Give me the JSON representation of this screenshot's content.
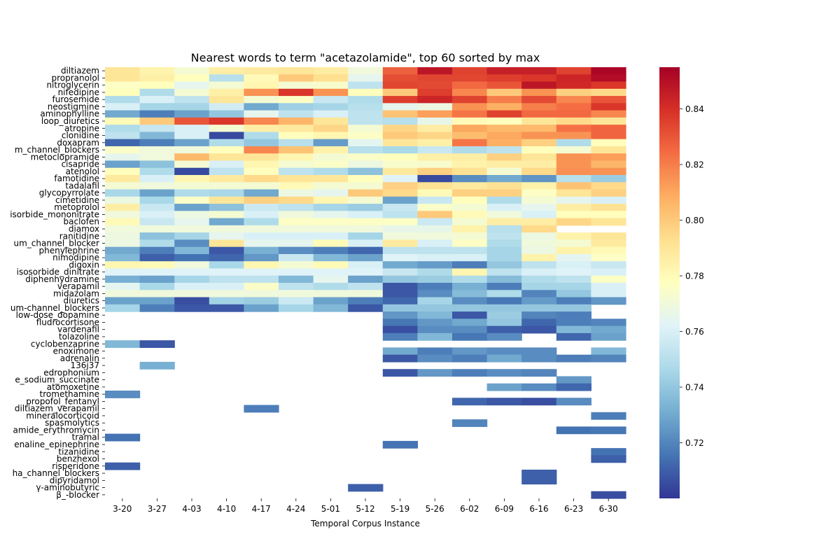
{
  "chart_data": {
    "type": "heatmap",
    "title": "Nearest words to term \"acetazolamide\", top 60 sorted by max",
    "xlabel": "Temporal Corpus Instance",
    "ylabel": "",
    "colormap": "RdYlBu_r",
    "clim": [
      0.7,
      0.855
    ],
    "colorbar_ticks": [
      "0.72",
      "0.74",
      "0.76",
      "0.78",
      "0.80",
      "0.82",
      "0.84"
    ],
    "colorbar_tick_values": [
      0.72,
      0.74,
      0.76,
      0.78,
      0.8,
      0.82,
      0.84
    ],
    "x": [
      "3-20",
      "3-27",
      "4-03",
      "4-10",
      "4-17",
      "4-24",
      "5-01",
      "5-12",
      "5-19",
      "5-26",
      "6-02",
      "6-09",
      "6-16",
      "6-23",
      "6-30"
    ],
    "y": [
      "diltiazem",
      "propranolol",
      "nitroglycerin",
      "nifedipine",
      "furosemide",
      "neostigmine",
      "aminophylline",
      "loop_diuretics",
      "atropine",
      "clonidine",
      "doxapram",
      "m_channel_blockers",
      "metoclopramide",
      "cisapride",
      "atenolol",
      "famotidine",
      "tadalafil",
      "glycopyrrolate",
      "cimetidine",
      "metoprolol",
      "isorbide_mononitrate",
      "baclofen",
      "diamox",
      "ranitidine",
      "um_channel_blocker",
      "phenylephrine",
      "nimodipine",
      "digoxin",
      "isosorbide_dinitrate",
      "diphenhydramine",
      "verapamil",
      "midazolam",
      "diuretics",
      "um-channel_blockers",
      "low-dose_dopamine",
      "fludrocortisone",
      "vardenafil",
      "tolazoline",
      "cyclobenzaprine",
      "enoximone",
      "adrenalin",
      "136j37",
      "edrophonium",
      "e_sodium_succinate",
      "atomoxetine",
      "tromethamine",
      "propofol_fentanyl",
      "diltiazem_verapamil",
      "mineralocorticoid",
      "spasmolytics",
      "amide_erythromycin",
      "tramal",
      "enaline_epinephrine",
      "tizanidine",
      "benzhexol",
      "risperidone",
      "ha_channel_blockers",
      "dipyridamol",
      "γ-aminobutyric",
      "β_-blocker"
    ],
    "values": [
      [
        0.79,
        0.783,
        0.772,
        0.786,
        0.788,
        0.79,
        0.787,
        0.77,
        0.827,
        0.848,
        0.835,
        0.845,
        0.845,
        0.835,
        0.853
      ],
      [
        0.79,
        0.785,
        0.778,
        0.75,
        0.78,
        0.8,
        0.793,
        0.765,
        0.832,
        0.834,
        0.834,
        0.836,
        0.838,
        0.843,
        0.851
      ],
      [
        0.776,
        0.778,
        0.765,
        0.772,
        0.782,
        0.772,
        0.774,
        0.752,
        0.834,
        0.833,
        0.825,
        0.83,
        0.848,
        0.842,
        0.838
      ],
      [
        0.778,
        0.748,
        0.772,
        0.785,
        0.815,
        0.838,
        0.815,
        0.778,
        0.8,
        0.836,
        0.818,
        0.8,
        0.815,
        0.798,
        0.795
      ],
      [
        0.748,
        0.76,
        0.752,
        0.79,
        0.772,
        0.776,
        0.755,
        0.748,
        0.836,
        0.843,
        0.835,
        0.82,
        0.833,
        0.818,
        0.83
      ],
      [
        0.76,
        0.745,
        0.745,
        0.758,
        0.73,
        0.743,
        0.745,
        0.75,
        0.765,
        0.768,
        0.815,
        0.808,
        0.82,
        0.824,
        0.838
      ],
      [
        0.73,
        0.718,
        0.728,
        0.74,
        0.765,
        0.752,
        0.76,
        0.752,
        0.802,
        0.812,
        0.822,
        0.835,
        0.825,
        0.825,
        0.818
      ],
      [
        0.78,
        0.8,
        0.83,
        0.838,
        0.818,
        0.806,
        0.79,
        0.752,
        0.75,
        0.766,
        0.78,
        0.778,
        0.79,
        0.795,
        0.79
      ],
      [
        0.748,
        0.755,
        0.76,
        0.772,
        0.786,
        0.788,
        0.796,
        0.772,
        0.796,
        0.786,
        0.81,
        0.805,
        0.805,
        0.823,
        0.826
      ],
      [
        0.752,
        0.735,
        0.76,
        0.705,
        0.748,
        0.778,
        0.782,
        0.776,
        0.8,
        0.796,
        0.804,
        0.81,
        0.815,
        0.815,
        0.826
      ],
      [
        0.712,
        0.718,
        0.728,
        0.748,
        0.74,
        0.75,
        0.726,
        0.764,
        0.79,
        0.785,
        0.822,
        0.808,
        0.798,
        0.748,
        0.778
      ],
      [
        0.775,
        0.77,
        0.77,
        0.778,
        0.818,
        0.802,
        0.784,
        0.75,
        0.746,
        0.755,
        0.748,
        0.752,
        0.778,
        0.772,
        0.79
      ],
      [
        0.765,
        0.77,
        0.805,
        0.79,
        0.79,
        0.782,
        0.772,
        0.775,
        0.778,
        0.785,
        0.786,
        0.798,
        0.79,
        0.815,
        0.812
      ],
      [
        0.728,
        0.738,
        0.772,
        0.76,
        0.782,
        0.772,
        0.775,
        0.768,
        0.774,
        0.774,
        0.784,
        0.786,
        0.786,
        0.815,
        0.806
      ],
      [
        0.778,
        0.748,
        0.705,
        0.752,
        0.778,
        0.752,
        0.748,
        0.738,
        0.788,
        0.798,
        0.792,
        0.772,
        0.795,
        0.816,
        0.815
      ],
      [
        0.788,
        0.76,
        0.782,
        0.788,
        0.795,
        0.79,
        0.79,
        0.778,
        0.762,
        0.705,
        0.722,
        0.73,
        0.724,
        0.75,
        0.742
      ],
      [
        0.772,
        0.77,
        0.772,
        0.772,
        0.772,
        0.78,
        0.772,
        0.772,
        0.798,
        0.792,
        0.788,
        0.792,
        0.784,
        0.802,
        0.795
      ],
      [
        0.746,
        0.728,
        0.748,
        0.746,
        0.73,
        0.768,
        0.765,
        0.8,
        0.795,
        0.78,
        0.798,
        0.798,
        0.776,
        0.79,
        0.798
      ],
      [
        0.768,
        0.746,
        0.775,
        0.79,
        0.798,
        0.795,
        0.782,
        0.772,
        0.728,
        0.755,
        0.778,
        0.748,
        0.772,
        0.765,
        0.76
      ],
      [
        0.786,
        0.755,
        0.728,
        0.738,
        0.756,
        0.752,
        0.745,
        0.742,
        0.755,
        0.775,
        0.772,
        0.76,
        0.765,
        0.786,
        0.792
      ],
      [
        0.77,
        0.76,
        0.768,
        0.772,
        0.76,
        0.77,
        0.765,
        0.76,
        0.752,
        0.8,
        0.78,
        0.77,
        0.76,
        0.778,
        0.778
      ],
      [
        0.78,
        0.755,
        0.765,
        0.73,
        0.748,
        0.776,
        0.776,
        0.776,
        0.776,
        0.756,
        0.772,
        0.786,
        0.786,
        0.796,
        0.79
      ],
      [
        0.77,
        0.77,
        0.77,
        0.77,
        0.77,
        0.77,
        0.77,
        0.77,
        0.766,
        0.766,
        0.784,
        0.75,
        0.795,
        null,
        null
      ],
      [
        0.768,
        0.738,
        0.745,
        0.765,
        0.76,
        0.76,
        0.76,
        0.745,
        0.77,
        0.77,
        0.772,
        0.752,
        0.768,
        0.784,
        0.79
      ],
      [
        0.768,
        0.748,
        0.722,
        0.79,
        0.765,
        0.765,
        0.78,
        0.76,
        0.788,
        0.76,
        0.776,
        0.748,
        0.77,
        0.772,
        0.788
      ],
      [
        0.73,
        0.718,
        0.735,
        0.708,
        0.732,
        0.722,
        0.718,
        0.712,
        0.752,
        0.752,
        0.752,
        0.745,
        0.768,
        0.784,
        0.78
      ],
      [
        0.735,
        0.71,
        0.715,
        0.712,
        0.725,
        0.755,
        0.735,
        0.728,
        0.762,
        0.76,
        0.76,
        0.745,
        0.784,
        0.764,
        0.776
      ],
      [
        0.782,
        0.78,
        0.77,
        0.746,
        0.782,
        0.772,
        0.78,
        0.76,
        0.73,
        0.726,
        0.718,
        0.74,
        0.752,
        0.76,
        0.755
      ],
      [
        0.762,
        0.762,
        0.762,
        0.762,
        0.762,
        0.762,
        0.762,
        0.762,
        0.755,
        0.748,
        0.782,
        0.752,
        0.76,
        0.762,
        0.76
      ],
      [
        0.732,
        0.728,
        0.745,
        0.752,
        0.752,
        0.735,
        0.765,
        0.728,
        0.74,
        0.742,
        0.748,
        0.736,
        0.748,
        0.752,
        0.776
      ],
      [
        0.764,
        0.746,
        0.76,
        0.76,
        0.775,
        0.752,
        0.748,
        0.752,
        0.708,
        0.718,
        0.732,
        0.718,
        0.745,
        0.745,
        0.76
      ],
      [
        0.77,
        0.77,
        0.77,
        0.77,
        0.77,
        0.77,
        0.77,
        0.77,
        0.708,
        0.722,
        0.736,
        0.748,
        0.72,
        0.74,
        0.76
      ],
      [
        0.728,
        0.728,
        0.706,
        0.744,
        0.742,
        0.756,
        0.728,
        0.718,
        0.712,
        0.745,
        0.722,
        0.716,
        0.726,
        0.718,
        0.725
      ],
      [
        0.745,
        0.718,
        0.708,
        0.708,
        0.728,
        0.745,
        0.735,
        0.708,
        0.74,
        0.74,
        0.74,
        0.74,
        0.74,
        0.74,
        null
      ],
      [
        null,
        null,
        null,
        null,
        null,
        null,
        null,
        null,
        0.725,
        0.735,
        0.708,
        0.742,
        0.72,
        0.718,
        null
      ],
      [
        null,
        null,
        null,
        null,
        null,
        null,
        null,
        null,
        0.716,
        0.725,
        0.73,
        0.74,
        0.712,
        0.718,
        0.72
      ],
      [
        null,
        null,
        null,
        null,
        null,
        null,
        null,
        null,
        0.706,
        0.722,
        0.722,
        0.71,
        0.708,
        0.735,
        0.73
      ],
      [
        null,
        null,
        null,
        null,
        null,
        null,
        null,
        null,
        0.718,
        0.735,
        0.716,
        0.722,
        null,
        0.712,
        0.728
      ],
      [
        0.735,
        0.708,
        null,
        null,
        null,
        null,
        null,
        null,
        null,
        null,
        null,
        null,
        null,
        null,
        null
      ],
      [
        null,
        null,
        null,
        null,
        null,
        null,
        null,
        null,
        0.73,
        0.718,
        0.725,
        0.722,
        0.722,
        null,
        0.735
      ],
      [
        null,
        null,
        null,
        null,
        null,
        null,
        null,
        null,
        0.708,
        0.722,
        0.718,
        0.73,
        0.722,
        0.718,
        0.72
      ],
      [
        null,
        0.732,
        null,
        null,
        null,
        null,
        null,
        null,
        null,
        null,
        null,
        null,
        null,
        null,
        null
      ],
      [
        null,
        null,
        null,
        null,
        null,
        null,
        null,
        null,
        0.708,
        0.725,
        0.718,
        0.722,
        0.72,
        null,
        null
      ],
      [
        null,
        null,
        null,
        null,
        null,
        null,
        null,
        null,
        null,
        null,
        null,
        null,
        null,
        0.725,
        null
      ],
      [
        null,
        null,
        null,
        null,
        null,
        null,
        null,
        null,
        null,
        null,
        null,
        0.728,
        0.722,
        0.712,
        null
      ],
      [
        0.722,
        null,
        null,
        null,
        null,
        null,
        null,
        null,
        null,
        null,
        null,
        null,
        null,
        null,
        null
      ],
      [
        null,
        null,
        null,
        null,
        null,
        null,
        null,
        null,
        null,
        null,
        0.712,
        0.708,
        0.706,
        0.722,
        null
      ],
      [
        null,
        null,
        null,
        null,
        0.718,
        null,
        null,
        null,
        null,
        null,
        null,
        null,
        null,
        null,
        null
      ],
      [
        null,
        null,
        null,
        null,
        null,
        null,
        null,
        null,
        null,
        null,
        null,
        null,
        null,
        null,
        0.718
      ],
      [
        null,
        null,
        null,
        null,
        null,
        null,
        null,
        null,
        null,
        null,
        0.72,
        null,
        null,
        null,
        null
      ],
      [
        null,
        null,
        null,
        null,
        null,
        null,
        null,
        null,
        null,
        null,
        null,
        null,
        null,
        0.715,
        0.716
      ],
      [
        0.715,
        null,
        null,
        null,
        null,
        null,
        null,
        null,
        null,
        null,
        null,
        null,
        null,
        null,
        null
      ],
      [
        null,
        null,
        null,
        null,
        null,
        null,
        null,
        null,
        0.715,
        null,
        null,
        null,
        null,
        null,
        null
      ],
      [
        null,
        null,
        null,
        null,
        null,
        null,
        null,
        null,
        null,
        null,
        null,
        null,
        null,
        null,
        0.715
      ],
      [
        null,
        null,
        null,
        null,
        null,
        null,
        null,
        null,
        null,
        null,
        null,
        null,
        null,
        null,
        0.71
      ],
      [
        0.71,
        null,
        null,
        null,
        null,
        null,
        null,
        null,
        null,
        null,
        null,
        null,
        null,
        null,
        null
      ],
      [
        null,
        null,
        null,
        null,
        null,
        null,
        null,
        null,
        null,
        null,
        null,
        null,
        0.71,
        null,
        null
      ],
      [
        null,
        null,
        null,
        null,
        null,
        null,
        null,
        null,
        null,
        null,
        null,
        null,
        0.71,
        null,
        null
      ],
      [
        null,
        null,
        null,
        null,
        null,
        null,
        null,
        0.71,
        null,
        null,
        null,
        null,
        null,
        null,
        null
      ],
      [
        null,
        null,
        null,
        null,
        null,
        null,
        null,
        null,
        null,
        null,
        null,
        null,
        null,
        null,
        0.706
      ]
    ]
  }
}
